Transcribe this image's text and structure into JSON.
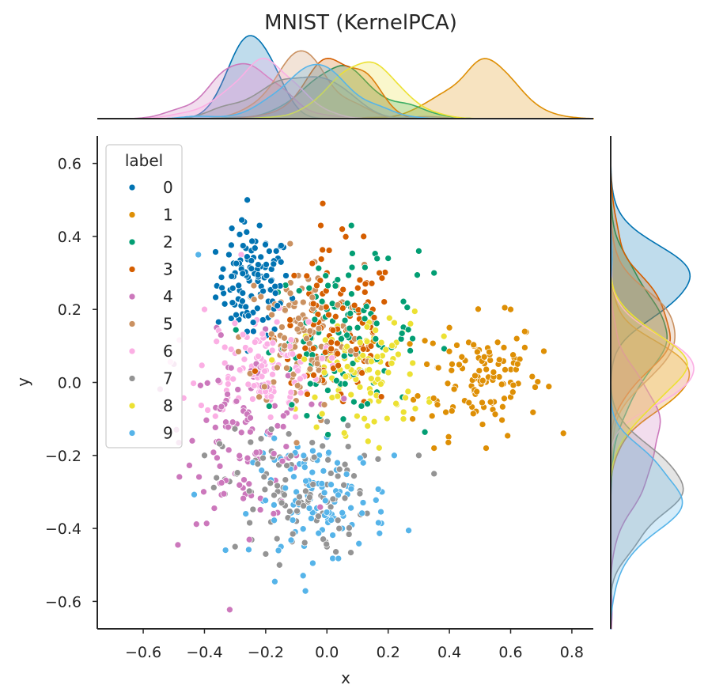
{
  "chart_data": {
    "type": "scatter",
    "title": "MNIST (KernelPCA)",
    "xlabel": "x",
    "ylabel": "y",
    "xlim": [
      -0.75,
      0.87
    ],
    "ylim": [
      -0.675,
      0.675
    ],
    "xticks": [
      -0.6,
      -0.4,
      -0.2,
      0.0,
      0.2,
      0.4,
      0.6,
      0.8
    ],
    "xtick_labels": [
      "−0.6",
      "−0.4",
      "−0.2",
      "0.0",
      "0.2",
      "0.4",
      "0.6",
      "0.8"
    ],
    "yticks": [
      -0.6,
      -0.4,
      -0.2,
      0.0,
      0.2,
      0.4,
      0.6
    ],
    "ytick_labels": [
      "−0.6",
      "−0.4",
      "−0.2",
      "0.0",
      "0.2",
      "0.4",
      "0.6"
    ],
    "grid": false,
    "marginals": "kde",
    "legend": {
      "title": "label",
      "position": "top-left",
      "entries": [
        "0",
        "1",
        "2",
        "3",
        "4",
        "5",
        "6",
        "7",
        "8",
        "9"
      ]
    },
    "series": [
      {
        "name": "0",
        "color": "#0173b2",
        "center": [
          -0.24,
          0.27
        ],
        "spread": [
          0.06,
          0.07
        ],
        "points": [
          [
            -0.26,
            0.5
          ],
          [
            -0.22,
            0.43
          ],
          [
            -0.3,
            0.3
          ],
          [
            -0.28,
            0.21
          ],
          [
            -0.18,
            0.28
          ],
          [
            -0.24,
            0.14
          ],
          [
            -0.32,
            0.35
          ],
          [
            -0.2,
            0.38
          ],
          [
            -0.27,
            0.44
          ],
          [
            -0.16,
            0.34
          ]
        ]
      },
      {
        "name": "1",
        "color": "#de8f05",
        "center": [
          0.5,
          0.02
        ],
        "spread": [
          0.1,
          0.08
        ],
        "points": [
          [
            0.6,
            0.2
          ],
          [
            0.62,
            0.12
          ],
          [
            0.56,
            0.05
          ],
          [
            0.45,
            -0.05
          ],
          [
            0.4,
            0.15
          ],
          [
            0.28,
            -0.1
          ],
          [
            0.35,
            -0.18
          ],
          [
            0.52,
            -0.18
          ],
          [
            0.6,
            0.0
          ],
          [
            0.48,
            0.1
          ]
        ]
      },
      {
        "name": "2",
        "color": "#029e73",
        "center": [
          0.05,
          0.12
        ],
        "spread": [
          0.12,
          0.1
        ],
        "points": [
          [
            0.08,
            0.43
          ],
          [
            0.3,
            0.36
          ],
          [
            0.2,
            0.34
          ],
          [
            0.35,
            0.3
          ],
          [
            -0.05,
            0.05
          ],
          [
            0.1,
            0.15
          ],
          [
            0.0,
            0.2
          ],
          [
            0.28,
            0.12
          ]
        ]
      },
      {
        "name": "3",
        "color": "#d55e00",
        "center": [
          0.03,
          0.13
        ],
        "spread": [
          0.1,
          0.11
        ],
        "points": [
          [
            -0.02,
            0.43
          ],
          [
            0.05,
            0.42
          ],
          [
            0.12,
            0.4
          ],
          [
            0.0,
            0.3
          ],
          [
            0.15,
            0.2
          ],
          [
            0.1,
            0.0
          ],
          [
            0.2,
            0.05
          ],
          [
            -0.05,
            0.25
          ]
        ]
      },
      {
        "name": "4",
        "color": "#cc78bc",
        "center": [
          -0.26,
          -0.14
        ],
        "spread": [
          0.1,
          0.12
        ],
        "points": [
          [
            -0.5,
            0.05
          ],
          [
            -0.44,
            -0.16
          ],
          [
            -0.3,
            -0.25
          ],
          [
            -0.15,
            -0.3
          ],
          [
            -0.1,
            -0.2
          ],
          [
            -0.36,
            0.15
          ],
          [
            -0.05,
            -0.06
          ]
        ]
      },
      {
        "name": "5",
        "color": "#ca9161",
        "center": [
          -0.08,
          0.12
        ],
        "spread": [
          0.1,
          0.1
        ],
        "points": [
          [
            -0.12,
            0.38
          ],
          [
            -0.04,
            0.33
          ],
          [
            -0.15,
            0.22
          ],
          [
            0.0,
            0.1
          ],
          [
            -0.1,
            0.0
          ],
          [
            0.05,
            0.22
          ]
        ]
      },
      {
        "name": "6",
        "color": "#fbafe4",
        "center": [
          -0.22,
          0.04
        ],
        "spread": [
          0.1,
          0.07
        ],
        "points": [
          [
            -0.3,
            0.08
          ],
          [
            -0.35,
            0.0
          ],
          [
            -0.2,
            0.1
          ],
          [
            -0.12,
            -0.04
          ],
          [
            -0.4,
            0.2
          ],
          [
            -0.28,
            0.35
          ]
        ]
      },
      {
        "name": "7",
        "color": "#949494",
        "center": [
          -0.1,
          -0.3
        ],
        "spread": [
          0.12,
          0.09
        ],
        "points": [
          [
            -0.3,
            -0.45
          ],
          [
            -0.2,
            -0.47
          ],
          [
            0.0,
            -0.45
          ],
          [
            0.3,
            -0.2
          ],
          [
            0.35,
            -0.25
          ],
          [
            -0.4,
            -0.2
          ],
          [
            -0.1,
            -0.38
          ]
        ]
      },
      {
        "name": "8",
        "color": "#ece133",
        "center": [
          0.12,
          0.03
        ],
        "spread": [
          0.1,
          0.08
        ],
        "points": [
          [
            0.15,
            0.18
          ],
          [
            0.22,
            0.1
          ],
          [
            0.05,
            -0.05
          ],
          [
            0.25,
            -0.1
          ],
          [
            0.18,
            0.0
          ],
          [
            -0.05,
            0.12
          ]
        ]
      },
      {
        "name": "9",
        "color": "#56b4e9",
        "center": [
          -0.02,
          -0.32
        ],
        "spread": [
          0.11,
          0.08
        ],
        "points": [
          [
            -0.15,
            -0.45
          ],
          [
            0.05,
            -0.4
          ],
          [
            0.18,
            -0.3
          ],
          [
            0.22,
            -0.2
          ],
          [
            -0.1,
            -0.3
          ],
          [
            -0.42,
            0.35
          ],
          [
            0.0,
            -0.15
          ]
        ]
      }
    ]
  }
}
